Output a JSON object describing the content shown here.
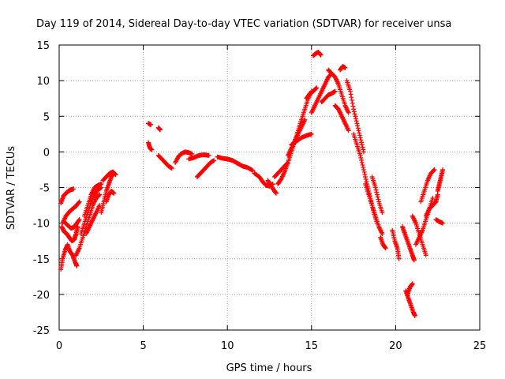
{
  "chart_data": {
    "type": "scatter",
    "title": "Day 119 of 2014, Sidereal Day-to-day VTEC variation (SDTVAR) for receiver unsa",
    "xlabel": "GPS time / hours",
    "ylabel": "SDTVAR / TECUs",
    "xlim": [
      0,
      25
    ],
    "ylim": [
      -25,
      15
    ],
    "xticks": [
      0,
      5,
      10,
      15,
      20,
      25
    ],
    "yticks": [
      -25,
      -20,
      -15,
      -10,
      -5,
      0,
      5,
      10,
      15
    ],
    "grid": true,
    "marker": "plus",
    "color": "#ff0000",
    "tracks": [
      [
        [
          0.1,
          -16.5
        ],
        [
          0.2,
          -15.0
        ],
        [
          0.35,
          -13.8
        ],
        [
          0.5,
          -13.0
        ],
        [
          0.65,
          -14.0
        ],
        [
          0.8,
          -14.5
        ],
        [
          0.95,
          -15.5
        ],
        [
          1.05,
          -16.0
        ]
      ],
      [
        [
          0.15,
          -10.5
        ],
        [
          0.3,
          -11.2
        ],
        [
          0.45,
          -11.5
        ],
        [
          0.6,
          -12.0
        ],
        [
          0.75,
          -12.5
        ],
        [
          0.9,
          -12.3
        ],
        [
          1.0,
          -11.5
        ],
        [
          1.1,
          -10.5
        ]
      ],
      [
        [
          0.1,
          -7.2
        ],
        [
          0.25,
          -6.2
        ],
        [
          0.4,
          -5.8
        ],
        [
          0.55,
          -5.5
        ],
        [
          0.7,
          -5.3
        ],
        [
          0.85,
          -5.2
        ]
      ],
      [
        [
          0.3,
          -9.8
        ],
        [
          0.5,
          -10.3
        ],
        [
          0.7,
          -10.7
        ],
        [
          0.85,
          -10.6
        ],
        [
          1.0,
          -10.2
        ],
        [
          1.2,
          -9.5
        ]
      ],
      [
        [
          0.2,
          -10.0
        ],
        [
          0.4,
          -9.0
        ],
        [
          0.6,
          -8.4
        ],
        [
          0.8,
          -8.0
        ],
        [
          1.0,
          -7.6
        ],
        [
          1.2,
          -7.0
        ]
      ],
      [
        [
          1.0,
          -14.5
        ],
        [
          1.2,
          -13.5
        ],
        [
          1.4,
          -12.0
        ],
        [
          1.6,
          -10.5
        ],
        [
          1.8,
          -9.0
        ],
        [
          2.0,
          -7.5
        ],
        [
          2.2,
          -6.5
        ],
        [
          2.4,
          -6.0
        ]
      ],
      [
        [
          1.3,
          -11.5
        ],
        [
          1.5,
          -10.0
        ],
        [
          1.7,
          -8.5
        ],
        [
          1.9,
          -7.0
        ],
        [
          2.1,
          -6.0
        ],
        [
          2.3,
          -5.3
        ],
        [
          2.5,
          -5.0
        ]
      ],
      [
        [
          1.5,
          -9.0
        ],
        [
          1.7,
          -7.5
        ],
        [
          1.9,
          -6.0
        ],
        [
          2.1,
          -5.0
        ],
        [
          2.3,
          -4.7
        ],
        [
          2.5,
          -4.5
        ]
      ],
      [
        [
          1.6,
          -11.5
        ],
        [
          1.8,
          -10.5
        ],
        [
          2.0,
          -9.5
        ],
        [
          2.2,
          -8.5
        ],
        [
          2.4,
          -7.5
        ]
      ],
      [
        [
          2.5,
          -8.5
        ],
        [
          2.65,
          -7.0
        ],
        [
          2.8,
          -5.5
        ],
        [
          2.95,
          -4.5
        ],
        [
          3.1,
          -3.5
        ],
        [
          3.2,
          -3.0
        ]
      ],
      [
        [
          2.8,
          -7.0
        ],
        [
          2.95,
          -6.0
        ],
        [
          3.1,
          -5.5
        ],
        [
          3.25,
          -5.8
        ]
      ],
      [
        [
          2.6,
          -4.0
        ],
        [
          2.8,
          -3.5
        ],
        [
          3.0,
          -3.0
        ],
        [
          3.2,
          -2.8
        ],
        [
          3.35,
          -3.2
        ]
      ],
      [
        [
          5.3,
          4.0
        ],
        [
          5.45,
          3.8
        ]
      ],
      [
        [
          5.9,
          3.4
        ],
        [
          6.0,
          3.1
        ]
      ],
      [
        [
          5.3,
          1.3
        ],
        [
          5.4,
          0.5
        ],
        [
          5.5,
          0.3
        ]
      ],
      [
        [
          5.9,
          -0.5
        ],
        [
          6.1,
          -1.0
        ],
        [
          6.3,
          -1.5
        ],
        [
          6.5,
          -2.0
        ],
        [
          6.7,
          -2.3
        ]
      ],
      [
        [
          6.9,
          -1.5
        ],
        [
          7.1,
          -0.6
        ],
        [
          7.3,
          -0.2
        ],
        [
          7.5,
          0.0
        ],
        [
          7.7,
          -0.1
        ],
        [
          7.9,
          -0.3
        ]
      ],
      [
        [
          7.7,
          -1.0
        ],
        [
          8.0,
          -0.8
        ],
        [
          8.3,
          -0.5
        ],
        [
          8.6,
          -0.4
        ],
        [
          8.9,
          -0.5
        ]
      ],
      [
        [
          8.2,
          -3.5
        ],
        [
          8.4,
          -3.0
        ],
        [
          8.6,
          -2.5
        ],
        [
          8.8,
          -2.0
        ],
        [
          9.0,
          -1.5
        ],
        [
          9.2,
          -1.2
        ]
      ],
      [
        [
          9.4,
          -0.7
        ],
        [
          9.7,
          -0.9
        ],
        [
          10.0,
          -1.0
        ],
        [
          10.3,
          -1.2
        ],
        [
          10.6,
          -1.6
        ],
        [
          10.9,
          -2.0
        ],
        [
          11.2,
          -2.2
        ],
        [
          11.5,
          -2.6
        ]
      ],
      [
        [
          11.6,
          -3.0
        ],
        [
          11.9,
          -3.5
        ],
        [
          12.1,
          -4.2
        ],
        [
          12.3,
          -4.7
        ],
        [
          12.5,
          -4.8
        ],
        [
          12.7,
          -4.5
        ]
      ],
      [
        [
          12.4,
          -4.0
        ],
        [
          12.6,
          -4.8
        ],
        [
          12.8,
          -5.5
        ],
        [
          12.9,
          -5.8
        ]
      ],
      [
        [
          12.8,
          -3.5
        ],
        [
          13.0,
          -3.0
        ],
        [
          13.2,
          -2.5
        ],
        [
          13.4,
          -2.0
        ],
        [
          13.6,
          -1.5
        ]
      ],
      [
        [
          13.0,
          -4.5
        ],
        [
          13.2,
          -3.8
        ],
        [
          13.4,
          -2.8
        ],
        [
          13.6,
          -1.5
        ],
        [
          13.8,
          0.0
        ],
        [
          14.0,
          1.5
        ],
        [
          14.2,
          3.0
        ],
        [
          14.4,
          4.5
        ],
        [
          14.6,
          6.0
        ],
        [
          14.8,
          7.5
        ],
        [
          15.0,
          8.5
        ]
      ],
      [
        [
          13.6,
          -0.5
        ],
        [
          13.8,
          0.5
        ],
        [
          14.0,
          1.5
        ],
        [
          14.2,
          2.5
        ],
        [
          14.4,
          3.5
        ],
        [
          14.6,
          4.5
        ]
      ],
      [
        [
          13.8,
          1.0
        ],
        [
          14.1,
          1.5
        ],
        [
          14.4,
          2.0
        ],
        [
          14.7,
          2.3
        ],
        [
          15.0,
          2.5
        ]
      ],
      [
        [
          14.7,
          7.5
        ],
        [
          14.9,
          8.2
        ],
        [
          15.1,
          8.5
        ],
        [
          15.3,
          9.0
        ]
      ],
      [
        [
          15.0,
          5.5
        ],
        [
          15.2,
          6.5
        ],
        [
          15.4,
          7.5
        ],
        [
          15.6,
          8.5
        ],
        [
          15.8,
          9.5
        ],
        [
          16.0,
          10.5
        ],
        [
          16.2,
          11.0
        ]
      ],
      [
        [
          15.1,
          13.5
        ],
        [
          15.25,
          13.8
        ],
        [
          15.4,
          14.0
        ],
        [
          15.55,
          13.6
        ]
      ],
      [
        [
          15.6,
          7.0
        ],
        [
          15.8,
          7.5
        ],
        [
          16.0,
          8.0
        ],
        [
          16.2,
          8.2
        ],
        [
          16.4,
          8.5
        ]
      ],
      [
        [
          16.0,
          11.5
        ],
        [
          16.2,
          11.0
        ],
        [
          16.4,
          10.5
        ],
        [
          16.6,
          9.5
        ],
        [
          16.8,
          8.0
        ],
        [
          17.0,
          6.5
        ],
        [
          17.2,
          5.5
        ]
      ],
      [
        [
          16.4,
          6.5
        ],
        [
          16.6,
          6.0
        ],
        [
          16.8,
          5.0
        ],
        [
          17.0,
          4.0
        ],
        [
          17.2,
          3.0
        ]
      ],
      [
        [
          16.7,
          11.5
        ],
        [
          16.85,
          12.0
        ],
        [
          17.0,
          11.8
        ]
      ],
      [
        [
          17.1,
          10.0
        ],
        [
          17.3,
          8.5
        ],
        [
          17.5,
          6.0
        ],
        [
          17.7,
          4.0
        ],
        [
          17.9,
          2.0
        ],
        [
          18.1,
          0.0
        ]
      ],
      [
        [
          17.5,
          2.5
        ],
        [
          17.7,
          1.0
        ],
        [
          17.9,
          -0.5
        ],
        [
          18.1,
          -2.5
        ],
        [
          18.3,
          -4.5
        ],
        [
          18.5,
          -6.5
        ],
        [
          18.7,
          -8.5
        ],
        [
          18.9,
          -10.0
        ]
      ],
      [
        [
          18.2,
          -4.5
        ],
        [
          18.4,
          -6.0
        ],
        [
          18.6,
          -7.5
        ],
        [
          18.8,
          -9.0
        ],
        [
          19.0,
          -10.5
        ],
        [
          19.2,
          -11.5
        ]
      ],
      [
        [
          18.6,
          -3.5
        ],
        [
          18.8,
          -5.0
        ],
        [
          19.0,
          -7.0
        ],
        [
          19.2,
          -8.5
        ]
      ],
      [
        [
          19.1,
          -12.0
        ],
        [
          19.25,
          -13.0
        ],
        [
          19.4,
          -13.5
        ]
      ],
      [
        [
          19.8,
          -11.0
        ],
        [
          19.95,
          -12.5
        ],
        [
          20.1,
          -13.5
        ],
        [
          20.2,
          -15.0
        ]
      ],
      [
        [
          20.4,
          -10.5
        ],
        [
          20.55,
          -11.5
        ],
        [
          20.7,
          -12.5
        ],
        [
          20.85,
          -13.5
        ],
        [
          21.0,
          -14.5
        ],
        [
          21.1,
          -15.2
        ]
      ],
      [
        [
          20.6,
          -19.5
        ],
        [
          20.75,
          -20.5
        ],
        [
          20.9,
          -21.5
        ],
        [
          21.05,
          -22.5
        ],
        [
          21.15,
          -23.0
        ]
      ],
      [
        [
          20.7,
          -20.0
        ],
        [
          20.85,
          -19.0
        ],
        [
          21.0,
          -18.5
        ]
      ],
      [
        [
          21.0,
          -9.0
        ],
        [
          21.2,
          -10.0
        ],
        [
          21.4,
          -11.5
        ],
        [
          21.6,
          -13.0
        ],
        [
          21.8,
          -14.5
        ]
      ],
      [
        [
          21.2,
          -13.0
        ],
        [
          21.4,
          -12.0
        ],
        [
          21.6,
          -11.0
        ],
        [
          21.8,
          -9.5
        ],
        [
          22.0,
          -8.0
        ],
        [
          22.2,
          -6.5
        ]
      ],
      [
        [
          21.5,
          -7.0
        ],
        [
          21.7,
          -5.5
        ],
        [
          21.9,
          -4.0
        ],
        [
          22.1,
          -3.0
        ],
        [
          22.3,
          -2.5
        ]
      ],
      [
        [
          21.8,
          -9.0
        ],
        [
          22.0,
          -8.0
        ],
        [
          22.2,
          -7.5
        ],
        [
          22.4,
          -7.0
        ],
        [
          22.5,
          -6.0
        ]
      ],
      [
        [
          22.5,
          -5.5
        ],
        [
          22.6,
          -4.5
        ],
        [
          22.7,
          -3.5
        ],
        [
          22.8,
          -2.5
        ]
      ],
      [
        [
          22.4,
          -9.5
        ],
        [
          22.6,
          -9.8
        ],
        [
          22.8,
          -10.0
        ]
      ]
    ]
  }
}
